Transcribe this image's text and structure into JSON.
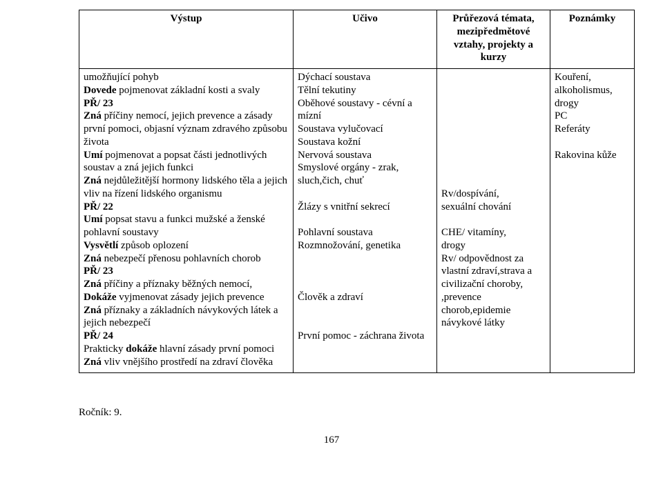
{
  "table": {
    "headers": {
      "c1": "Výstup",
      "c2": "Učivo",
      "c3": "Průřezová témata, mezipředmětové vztahy, projekty a kurzy",
      "c4": "Poznámky"
    },
    "row": {
      "c1": {
        "l01a": "umožňující pohyb",
        "l02a": "Dovede",
        "l02b": " pojmenovat základní kosti a svaly",
        "l03a": "PŘ/ 23",
        "l04a": "Zná",
        "l04b": " příčiny nemocí, jejich prevence a zásady první pomoci, objasní význam zdravého způsobu života",
        "l05a": "Umí",
        "l05b": " pojmenovat a popsat části jednotlivých soustav a zná jejich funkci",
        "l06a": "Zná",
        "l06b": " nejdůležitější hormony lidského těla a jejich vliv na řízení lidského organismu",
        "l07a": "PŘ/ 22",
        "l08a": "Umí",
        "l08b": " popsat stavu a funkci mužské a ženské pohlavní soustavy",
        "l09a": "Vysvětlí",
        "l09b": " způsob oplození",
        "l10a": "Zná",
        "l10b": " nebezpečí přenosu pohlavních chorob",
        "l11a": " PŘ/ 23",
        "l12a": "Zná",
        "l12b": " příčiny a příznaky běžných nemocí,",
        "l13a": "Dokáže",
        "l13b": "  vyjmenovat zásady jejich prevence",
        "l14a": "Zná",
        "l14b": " příznaky a základních  návykových  látek a jejich nebezpečí",
        "l15a": "PŘ/ 24",
        "l16a": "Prakticky ",
        "l16b": "dokáže",
        "l16c": " hlavní zásady první  pomoci",
        "l17a": "Zná",
        "l17b": " vliv vnějšího prostředí na zdraví člověka"
      },
      "c2": {
        "l01": "Dýchací soustava",
        "l02": "Tělní tekutiny",
        "l03": "Oběhové soustavy - cévní a mízní",
        "l04": "Soustava vylučovací",
        "l05": "Soustava kožní",
        "l06": "Nervová soustava",
        "l07": "Smyslové orgány - zrak, sluch,čich, chuť",
        "blank1": " ",
        "l08": "Žlázy s vnitřní sekrecí",
        "blank2": " ",
        "l09": "Pohlavní soustava",
        "l10": "Rozmnožování, genetika",
        "blank3": " ",
        "blank4": " ",
        "blank5": " ",
        "l11": "Člověk a zdraví",
        "blank6": " ",
        "blank7": " ",
        "l12": "První pomoc - záchrana života"
      },
      "c3": {
        "pad_top": " ",
        "l01": "Rv/dospívání,",
        "l02": "  sexuální chování",
        "blank1": " ",
        "l03": "CHE/ vitamíny,",
        "l04": "drogy",
        "l05": "Rv/ odpovědnost za vlastní zdraví,strava a civilizační choroby, ,prevence chorob,epidemie",
        "l06": "návykové látky"
      },
      "c4": {
        "l01": "Kouření, alkoholismus, drogy",
        "l02": "PC",
        "l03": "Referáty",
        "blank1": " ",
        "l04": "Rakovina kůže"
      }
    }
  },
  "footer": "Ročník: 9.",
  "page_number": "167"
}
